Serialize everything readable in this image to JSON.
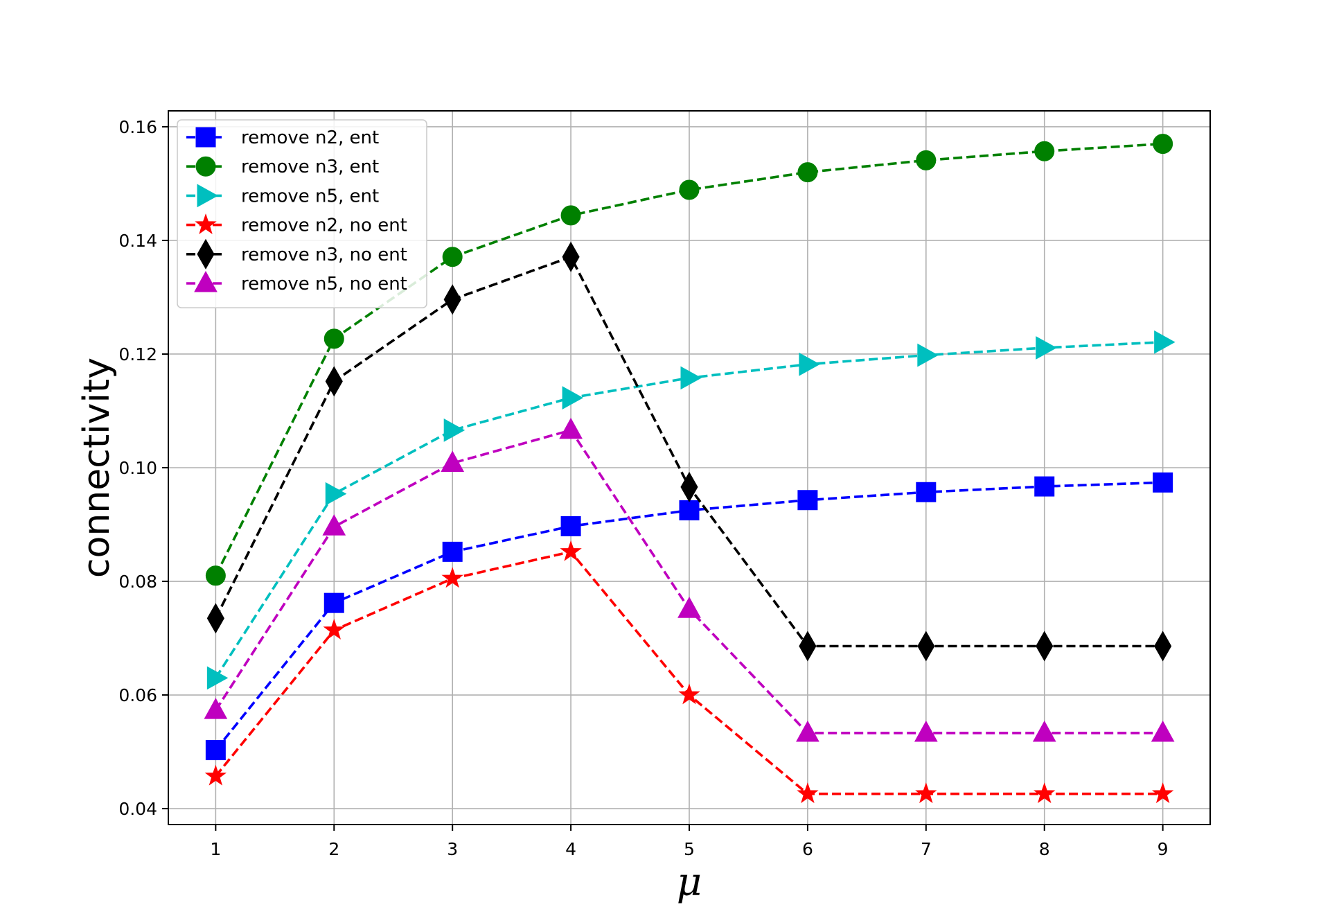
{
  "chart_data": {
    "type": "line",
    "title": "",
    "xlabel": "μ",
    "ylabel": "connectivity",
    "x": [
      1,
      2,
      3,
      4,
      5,
      6,
      7,
      8,
      9
    ],
    "xlim": [
      0.6,
      9.4
    ],
    "ylim": [
      0.0372,
      0.1628
    ],
    "x_ticks": [
      1,
      2,
      3,
      4,
      5,
      6,
      7,
      8,
      9
    ],
    "y_ticks": [
      "0.04",
      "0.06",
      "0.08",
      "0.10",
      "0.12",
      "0.14",
      "0.16"
    ],
    "y_tick_values": [
      0.04,
      0.06,
      0.08,
      0.1,
      0.12,
      0.14,
      0.16
    ],
    "grid": true,
    "legend_position": "upper-left",
    "series": [
      {
        "name": "remove n2, ent",
        "color": "#0000ff",
        "marker": "square",
        "line_style": "dashed",
        "values": [
          0.0503,
          0.0762,
          0.0852,
          0.0897,
          0.0925,
          0.0943,
          0.0957,
          0.0967,
          0.0974
        ]
      },
      {
        "name": "remove n3, ent",
        "color": "#008000",
        "marker": "circle",
        "line_style": "dashed",
        "values": [
          0.081,
          0.1227,
          0.1371,
          0.1444,
          0.1489,
          0.152,
          0.1541,
          0.1557,
          0.157
        ]
      },
      {
        "name": "remove n5, ent",
        "color": "#00bfbf",
        "marker": "triangle-right",
        "line_style": "dashed",
        "values": [
          0.063,
          0.0954,
          0.1066,
          0.1123,
          0.1158,
          0.1182,
          0.1198,
          0.1211,
          0.1221
        ]
      },
      {
        "name": "remove n2, no ent",
        "color": "#ff0000",
        "marker": "star",
        "line_style": "dashed",
        "values": [
          0.0457,
          0.0714,
          0.0805,
          0.0852,
          0.06,
          0.0426,
          0.0426,
          0.0426,
          0.0426
        ]
      },
      {
        "name": "remove n3, no ent",
        "color": "#000000",
        "marker": "thin-diamond",
        "line_style": "dashed",
        "values": [
          0.0735,
          0.1152,
          0.1296,
          0.1371,
          0.0966,
          0.0686,
          0.0686,
          0.0686,
          0.0686
        ]
      },
      {
        "name": "remove n5, no ent",
        "color": "#bf00bf",
        "marker": "triangle-up",
        "line_style": "dashed",
        "values": [
          0.0573,
          0.0896,
          0.1008,
          0.1066,
          0.0751,
          0.0533,
          0.0533,
          0.0533,
          0.0533
        ]
      }
    ]
  }
}
